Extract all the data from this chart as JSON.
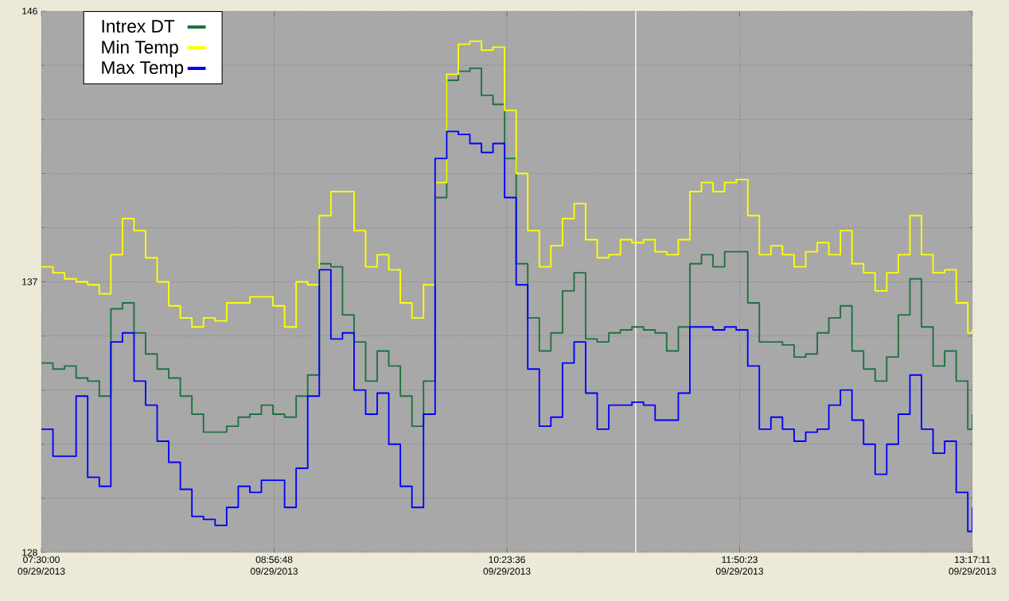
{
  "chart_data": {
    "type": "step",
    "xlim": [
      "2013-09-29T07:30:00",
      "2013-09-29T13:17:11"
    ],
    "ylim": [
      128,
      146
    ],
    "yticks": [
      128,
      137,
      146
    ],
    "xticks": [
      {
        "value": "2013-09-29T07:30:00",
        "label": "07:30:00 09/29/2013"
      },
      {
        "value": "2013-09-29T08:56:48",
        "label": "08:56:48 09/29/2013"
      },
      {
        "value": "2013-09-29T10:23:36",
        "label": "10:23:36 09/29/2013"
      },
      {
        "value": "2013-09-29T11:50:23",
        "label": "11:50:23 09/29/2013"
      },
      {
        "value": "2013-09-29T13:17:11",
        "label": "13:17:11 09/29/2013"
      }
    ],
    "grid": true,
    "legend": "top left",
    "ref_lines": [
      {
        "axis": "x",
        "value": "2013-09-29T11:11:38",
        "color": "#ffffff"
      }
    ],
    "x": [
      "2013-09-29T07:30:00",
      "2013-09-29T07:34:19",
      "2013-09-29T07:38:38",
      "2013-09-29T07:42:57",
      "2013-09-29T07:47:16",
      "2013-09-29T07:51:36",
      "2013-09-29T07:55:55",
      "2013-09-29T08:00:14",
      "2013-09-29T08:04:33",
      "2013-09-29T08:08:52",
      "2013-09-29T08:13:11",
      "2013-09-29T08:17:30",
      "2013-09-29T08:21:49",
      "2013-09-29T08:26:08",
      "2013-09-29T08:30:27",
      "2013-09-29T08:34:47",
      "2013-09-29T08:39:06",
      "2013-09-29T08:43:25",
      "2013-09-29T08:47:44",
      "2013-09-29T08:52:03",
      "2013-09-29T08:56:22",
      "2013-09-29T09:00:41",
      "2013-09-29T09:05:00",
      "2013-09-29T09:09:19",
      "2013-09-29T09:13:38",
      "2013-09-29T09:17:58",
      "2013-09-29T09:22:17",
      "2013-09-29T09:26:36",
      "2013-09-29T09:30:55",
      "2013-09-29T09:35:14",
      "2013-09-29T09:39:33",
      "2013-09-29T09:43:52",
      "2013-09-29T09:48:11",
      "2013-09-29T09:52:30",
      "2013-09-29T09:56:49",
      "2013-09-29T10:01:09",
      "2013-09-29T10:05:28",
      "2013-09-29T10:09:47",
      "2013-09-29T10:14:06",
      "2013-09-29T10:18:25",
      "2013-09-29T10:22:44",
      "2013-09-29T10:27:03",
      "2013-09-29T10:31:22",
      "2013-09-29T10:35:41",
      "2013-09-29T10:40:00",
      "2013-09-29T10:44:20",
      "2013-09-29T10:48:39",
      "2013-09-29T10:52:58",
      "2013-09-29T10:57:17",
      "2013-09-29T11:01:36",
      "2013-09-29T11:05:55",
      "2013-09-29T11:10:14",
      "2013-09-29T11:14:33",
      "2013-09-29T11:18:52",
      "2013-09-29T11:23:11",
      "2013-09-29T11:27:31",
      "2013-09-29T11:31:50",
      "2013-09-29T11:36:09",
      "2013-09-29T11:40:28",
      "2013-09-29T11:44:47",
      "2013-09-29T11:49:06",
      "2013-09-29T11:53:25",
      "2013-09-29T11:57:44",
      "2013-09-29T12:02:03",
      "2013-09-29T12:06:22",
      "2013-09-29T12:10:42",
      "2013-09-29T12:15:01",
      "2013-09-29T12:19:20",
      "2013-09-29T12:23:39",
      "2013-09-29T12:27:58",
      "2013-09-29T12:32:17",
      "2013-09-29T12:36:36",
      "2013-09-29T12:40:55",
      "2013-09-29T12:45:14",
      "2013-09-29T12:49:33",
      "2013-09-29T12:53:53",
      "2013-09-29T12:58:12",
      "2013-09-29T13:02:31",
      "2013-09-29T13:06:50",
      "2013-09-29T13:11:09",
      "2013-09-29T13:15:28",
      "2013-09-29T13:17:11"
    ],
    "series": [
      {
        "name": "Intrex DT",
        "color": "#1f7040",
        "values": [
          134.3,
          134.1,
          134.2,
          133.8,
          133.7,
          133.2,
          136.1,
          136.3,
          135.3,
          134.6,
          134.1,
          133.8,
          133.2,
          132.6,
          132.0,
          132.0,
          132.2,
          132.5,
          132.6,
          132.9,
          132.6,
          132.5,
          133.2,
          133.9,
          137.6,
          137.5,
          135.9,
          135.0,
          133.7,
          134.7,
          134.2,
          133.2,
          132.2,
          133.7,
          139.8,
          143.7,
          144.0,
          144.1,
          143.2,
          142.9,
          141.1,
          137.6,
          135.8,
          134.7,
          135.3,
          136.7,
          137.3,
          135.1,
          135.0,
          135.3,
          135.4,
          135.5,
          135.4,
          135.3,
          134.7,
          135.5,
          137.6,
          137.9,
          137.5,
          138.0,
          138.0,
          136.3,
          135.0,
          135.0,
          134.9,
          134.5,
          134.6,
          135.3,
          135.8,
          136.2,
          134.7,
          134.1,
          133.7,
          134.5,
          135.9,
          137.1,
          135.5,
          134.2,
          134.7,
          133.7,
          132.1,
          132.6
        ]
      },
      {
        "name": "Min Temp",
        "color": "#ffff00",
        "values": [
          137.5,
          137.3,
          137.1,
          137.0,
          136.9,
          136.6,
          137.9,
          139.1,
          138.7,
          137.8,
          137.0,
          136.2,
          135.8,
          135.5,
          135.8,
          135.7,
          136.3,
          136.3,
          136.5,
          136.5,
          136.2,
          135.5,
          137.0,
          136.9,
          139.2,
          140.0,
          140.0,
          138.7,
          137.5,
          137.9,
          137.4,
          136.3,
          135.8,
          136.9,
          140.3,
          143.9,
          144.9,
          145.0,
          144.7,
          144.8,
          142.7,
          140.6,
          138.7,
          137.5,
          138.2,
          139.1,
          139.6,
          138.4,
          137.8,
          137.9,
          138.4,
          138.3,
          138.4,
          138.0,
          137.9,
          138.4,
          140.0,
          140.3,
          140.0,
          140.3,
          140.4,
          139.2,
          137.9,
          138.2,
          137.9,
          137.5,
          138.0,
          138.3,
          137.9,
          138.7,
          137.6,
          137.3,
          136.7,
          137.3,
          137.9,
          139.2,
          137.9,
          137.3,
          137.4,
          136.3,
          135.3,
          135.4
        ]
      },
      {
        "name": "Max Temp",
        "color": "#0000ff",
        "values": [
          132.1,
          131.2,
          131.2,
          133.2,
          130.5,
          130.2,
          135.0,
          135.3,
          133.7,
          132.9,
          131.7,
          131.0,
          130.1,
          129.2,
          129.1,
          128.9,
          129.5,
          130.2,
          130.0,
          130.4,
          130.4,
          129.5,
          130.8,
          133.2,
          137.4,
          135.1,
          135.3,
          133.4,
          132.6,
          133.3,
          131.6,
          130.2,
          129.5,
          132.6,
          141.1,
          142.0,
          141.9,
          141.6,
          141.3,
          141.6,
          139.8,
          136.9,
          134.1,
          132.2,
          132.5,
          134.3,
          135.0,
          133.3,
          132.1,
          132.9,
          132.9,
          133.0,
          132.9,
          132.4,
          132.4,
          133.3,
          135.5,
          135.5,
          135.4,
          135.5,
          135.4,
          134.2,
          132.1,
          132.5,
          132.1,
          131.7,
          132.0,
          132.1,
          132.9,
          133.4,
          132.4,
          131.6,
          130.6,
          131.6,
          132.6,
          133.9,
          132.1,
          131.3,
          131.7,
          130.0,
          128.7,
          129.5
        ]
      }
    ]
  }
}
